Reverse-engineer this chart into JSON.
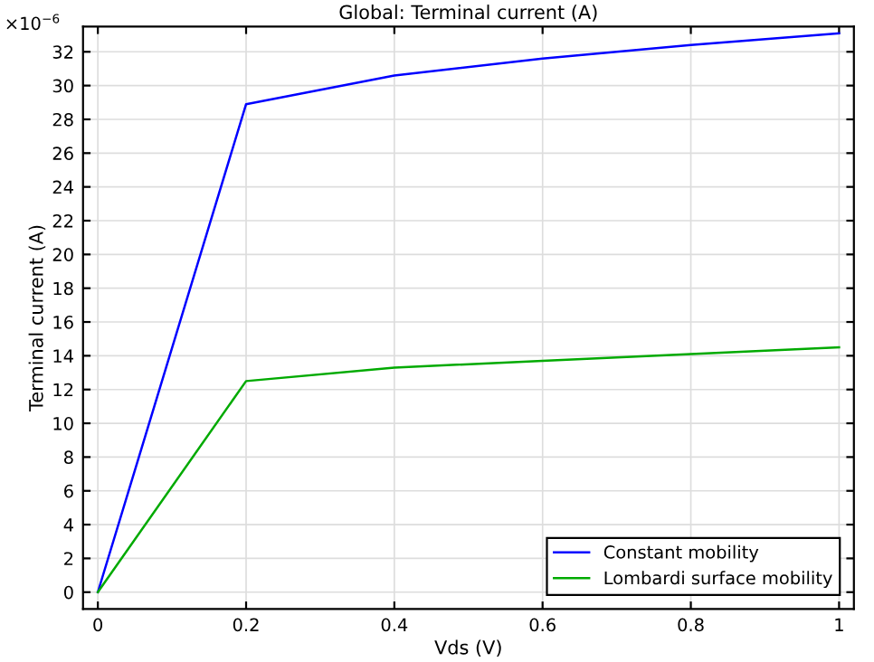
{
  "chart_data": {
    "type": "line",
    "title": "Global: Terminal current (A)",
    "xlabel": "Vds (V)",
    "ylabel": "Terminal current (A)",
    "x": [
      0,
      0.2,
      0.4,
      0.6,
      0.8,
      1
    ],
    "series": [
      {
        "name": "Constant mobility",
        "color": "#0000ff",
        "values": [
          0,
          28.9,
          30.6,
          31.6,
          32.4,
          33.1
        ]
      },
      {
        "name": "Lombardi surface mobility",
        "color": "#00aa00",
        "values": [
          0,
          12.5,
          13.3,
          13.7,
          14.1,
          14.5
        ]
      }
    ],
    "xlim": [
      -0.02,
      1.02
    ],
    "ylim": [
      -1.0,
      33.5
    ],
    "xticks": [
      0,
      0.2,
      0.4,
      0.6,
      0.8,
      1
    ],
    "yticks": [
      0,
      2,
      4,
      6,
      8,
      10,
      12,
      14,
      16,
      18,
      20,
      22,
      24,
      26,
      28,
      30,
      32
    ],
    "annotations": [
      "×10$^{−6}$"
    ],
    "grid": true,
    "legend": "bottom right",
    "line_style": "solid",
    "marker": "none"
  }
}
